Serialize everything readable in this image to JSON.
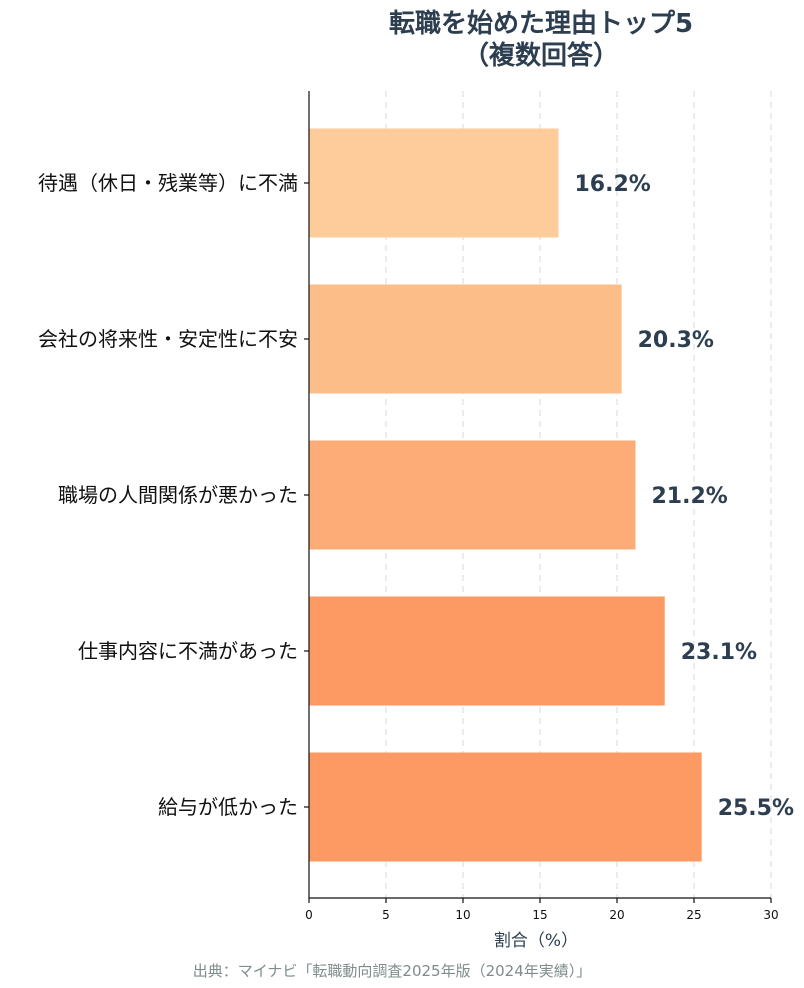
{
  "chart_data": {
    "type": "bar",
    "orientation": "horizontal",
    "title_lines": [
      "転職を始めた理由トップ5",
      "（複数回答）"
    ],
    "categories": [
      "待遇（休日・残業等）に不満",
      "会社の将来性・安定性に不安",
      "職場の人間関係が悪かった",
      "仕事内容に不満があった",
      "給与が低かった"
    ],
    "values": [
      16.2,
      20.3,
      21.2,
      23.1,
      25.5
    ],
    "value_labels": [
      "16.2%",
      "20.3%",
      "21.2%",
      "23.1%",
      "25.5%"
    ],
    "bar_colors": [
      "#fecb9a",
      "#fdbd89",
      "#fdab77",
      "#fd9963",
      "#fd9963"
    ],
    "xlabel": "割合（%）",
    "ylabel": "",
    "xlim": [
      0,
      30
    ],
    "xticks": [
      0,
      5,
      10,
      15,
      20,
      25,
      30
    ],
    "grid": "vertical-dashed",
    "legend": "none"
  },
  "footer": {
    "source": "出典：マイナビ「転職動向調査2025年版（2024年実績）」"
  }
}
